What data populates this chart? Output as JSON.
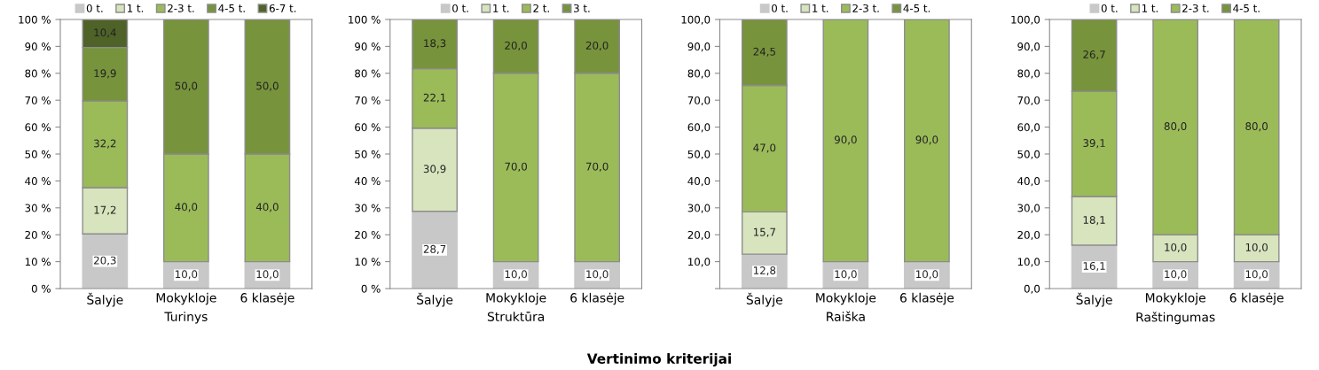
{
  "chart_data": [
    {
      "type": "bar",
      "stacked": true,
      "categories": [
        "Šalyje",
        "Mokykloje",
        "6 klasėje"
      ],
      "xlabel": "Turinys",
      "ylim": [
        0,
        100
      ],
      "yticks": [
        {
          "value": 0,
          "label": "0 %"
        },
        {
          "value": 10,
          "label": "10 %"
        },
        {
          "value": 20,
          "label": "20 %"
        },
        {
          "value": 30,
          "label": "30 %"
        },
        {
          "value": 40,
          "label": "40 %"
        },
        {
          "value": 50,
          "label": "50 %"
        },
        {
          "value": 60,
          "label": "60 %"
        },
        {
          "value": 70,
          "label": "70 %"
        },
        {
          "value": 80,
          "label": "80 %"
        },
        {
          "value": 90,
          "label": "90 %"
        },
        {
          "value": 100,
          "label": "100 %"
        }
      ],
      "legend": "top",
      "grid": false,
      "annotations": [
        "Vertinimo kriterijai"
      ],
      "series": [
        {
          "name": "0 t.",
          "color": "#c8c8c8",
          "values": [
            20.3,
            10.0,
            10.0
          ],
          "value_labels": [
            "20,3",
            "10,0",
            "10,0"
          ]
        },
        {
          "name": "1 t.",
          "color": "#d7e4bd",
          "values": [
            17.2,
            0,
            0
          ],
          "value_labels": [
            "17,2",
            null,
            null
          ]
        },
        {
          "name": "2-3 t.",
          "color": "#9bbb59",
          "values": [
            32.2,
            40.0,
            40.0
          ],
          "value_labels": [
            "32,2",
            "40,0",
            "40,0"
          ]
        },
        {
          "name": "4-5 t.",
          "color": "#77933c",
          "values": [
            19.9,
            50.0,
            50.0
          ],
          "value_labels": [
            "19,9",
            "50,0",
            "50,0"
          ]
        },
        {
          "name": "6-7 t.",
          "color": "#4f6228",
          "values": [
            10.4,
            0,
            0
          ],
          "value_labels": [
            "10,4",
            null,
            null
          ]
        }
      ]
    },
    {
      "type": "bar",
      "stacked": true,
      "categories": [
        "Šalyje",
        "Mokykloje",
        "6 klasėje"
      ],
      "xlabel": "Struktūra",
      "ylim": [
        0,
        100
      ],
      "yticks": [
        {
          "value": 0,
          "label": "0 %"
        },
        {
          "value": 10,
          "label": "10 %"
        },
        {
          "value": 20,
          "label": "20 %"
        },
        {
          "value": 30,
          "label": "30 %"
        },
        {
          "value": 40,
          "label": "40 %"
        },
        {
          "value": 50,
          "label": "50 %"
        },
        {
          "value": 60,
          "label": "60 %"
        },
        {
          "value": 70,
          "label": "70 %"
        },
        {
          "value": 80,
          "label": "80 %"
        },
        {
          "value": 90,
          "label": "90 %"
        },
        {
          "value": 100,
          "label": "100 %"
        }
      ],
      "legend": "top",
      "grid": false,
      "series": [
        {
          "name": "0 t.",
          "color": "#c8c8c8",
          "values": [
            28.7,
            10.0,
            10.0
          ],
          "value_labels": [
            "28,7",
            "10,0",
            "10,0"
          ]
        },
        {
          "name": "1 t.",
          "color": "#d7e4bd",
          "values": [
            30.9,
            0,
            0
          ],
          "value_labels": [
            "30,9",
            null,
            null
          ]
        },
        {
          "name": "2 t.",
          "color": "#9bbb59",
          "values": [
            22.1,
            70.0,
            70.0
          ],
          "value_labels": [
            "22,1",
            "70,0",
            "70,0"
          ]
        },
        {
          "name": "3 t.",
          "color": "#77933c",
          "values": [
            18.3,
            20.0,
            20.0
          ],
          "value_labels": [
            "18,3",
            "20,0",
            "20,0"
          ]
        }
      ]
    },
    {
      "type": "bar",
      "stacked": true,
      "categories": [
        "Šalyje",
        "Mokykloje",
        "6 klasėje"
      ],
      "xlabel": "Raiška",
      "ylim": [
        0,
        100
      ],
      "yticks": [
        {
          "value": 0,
          "label": null
        },
        {
          "value": 10,
          "label": "10,0"
        },
        {
          "value": 20,
          "label": "20,0"
        },
        {
          "value": 30,
          "label": "30,0"
        },
        {
          "value": 40,
          "label": "40,0"
        },
        {
          "value": 50,
          "label": "50,0"
        },
        {
          "value": 60,
          "label": "60,0"
        },
        {
          "value": 70,
          "label": "70,0"
        },
        {
          "value": 80,
          "label": "80,0"
        },
        {
          "value": 90,
          "label": "90,0"
        },
        {
          "value": 100,
          "label": "100,0"
        }
      ],
      "legend": "top",
      "grid": false,
      "series": [
        {
          "name": "0 t.",
          "color": "#c8c8c8",
          "values": [
            12.8,
            10.0,
            10.0
          ],
          "value_labels": [
            "12,8",
            "10,0",
            "10,0"
          ]
        },
        {
          "name": "1 t.",
          "color": "#d7e4bd",
          "values": [
            15.7,
            0,
            0
          ],
          "value_labels": [
            "15,7",
            null,
            null
          ]
        },
        {
          "name": "2-3 t.",
          "color": "#9bbb59",
          "values": [
            47.0,
            90.0,
            90.0
          ],
          "value_labels": [
            "47,0",
            "90,0",
            "90,0"
          ]
        },
        {
          "name": "4-5 t.",
          "color": "#77933c",
          "values": [
            24.5,
            0,
            0
          ],
          "value_labels": [
            "24,5",
            null,
            null
          ]
        }
      ]
    },
    {
      "type": "bar",
      "stacked": true,
      "categories": [
        "Šalyje",
        "Mokykloje",
        "6 klasėje"
      ],
      "xlabel": "Raštingumas",
      "ylim": [
        0,
        100
      ],
      "yticks": [
        {
          "value": 0,
          "label": "0,0"
        },
        {
          "value": 10,
          "label": "10,0"
        },
        {
          "value": 20,
          "label": "20,0"
        },
        {
          "value": 30,
          "label": "30,0"
        },
        {
          "value": 40,
          "label": "40,0"
        },
        {
          "value": 50,
          "label": "50,0"
        },
        {
          "value": 60,
          "label": "60,0"
        },
        {
          "value": 70,
          "label": "70,0"
        },
        {
          "value": 80,
          "label": "80,0"
        },
        {
          "value": 90,
          "label": "90,0"
        },
        {
          "value": 100,
          "label": "100,0"
        }
      ],
      "legend": "top",
      "grid": false,
      "series": [
        {
          "name": "0 t.",
          "color": "#c8c8c8",
          "values": [
            16.1,
            10.0,
            10.0
          ],
          "value_labels": [
            "16,1",
            "10,0",
            "10,0"
          ]
        },
        {
          "name": "1 t.",
          "color": "#d7e4bd",
          "values": [
            18.1,
            10.0,
            10.0
          ],
          "value_labels": [
            "18,1",
            "10,0",
            "10,0"
          ]
        },
        {
          "name": "2-3 t.",
          "color": "#9bbb59",
          "values": [
            39.1,
            80.0,
            80.0
          ],
          "value_labels": [
            "39,1",
            "80,0",
            "80,0"
          ]
        },
        {
          "name": "4-5 t.",
          "color": "#77933c",
          "values": [
            26.7,
            0,
            0
          ],
          "value_labels": [
            "26,7",
            null,
            null
          ]
        }
      ]
    }
  ]
}
